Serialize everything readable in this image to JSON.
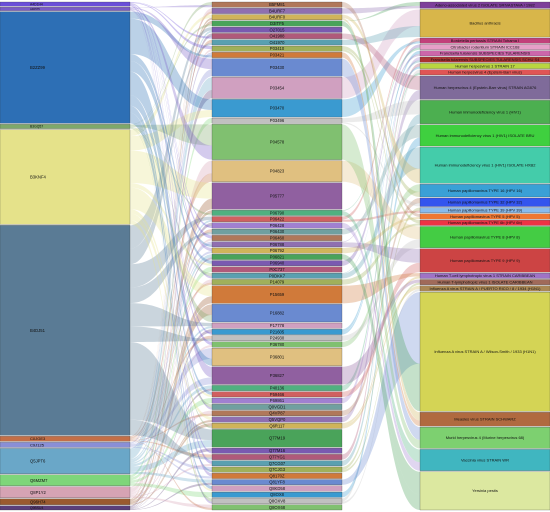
{
  "diagram": {
    "type": "alluvial",
    "colors": {
      "left": [
        "#6a4fd8",
        "#7a5cc8",
        "#2d6fb5",
        "#7fa86a",
        "#e5e28a",
        "#5a7b95",
        "#c46f47",
        "#8a8fd6",
        "#6aa7c8",
        "#7ed67a",
        "#d6a3b4",
        "#9a5a2f",
        "#5a3f7a",
        "#8a3b4a"
      ],
      "mid_palette": [
        "#b0785a",
        "#8f6fb0",
        "#d0b45a",
        "#4aa35a",
        "#7a5ab0",
        "#b05a7a",
        "#5aa0b0",
        "#a0b05a",
        "#d07a3a",
        "#6a8ad0",
        "#d0a0c0",
        "#3a9ad0",
        "#c0c0c0",
        "#80c070",
        "#e0c080",
        "#9060a0",
        "#50b080",
        "#d06060",
        "#a080d0",
        "#70a0a0"
      ],
      "right": [
        "#7d3f9a",
        "#d8b64a",
        "#c2407a",
        "#e6a0c8",
        "#cc66aa",
        "#aa3333",
        "#b9d640",
        "#e05555",
        "#7f6b9a",
        "#4caf50",
        "#3fd03f",
        "#44ccaa",
        "#3aa0d6",
        "#3355ee",
        "#88bbee",
        "#ee7733",
        "#ee3344",
        "#44cc44",
        "#cc4444",
        "#9f73c6",
        "#a06a5a",
        "#aa8855",
        "#d4d455",
        "#b06a40",
        "#7dd070",
        "#40b6c0",
        "#dce8a0",
        "#f0b070",
        "#6ad090",
        "#ee9999"
      ]
    },
    "left_nodes": [
      {
        "label": "A4D1H4",
        "value": 5
      },
      {
        "label": "A4D575",
        "value": 4
      },
      {
        "label": "B2ZZ99",
        "value": 132
      },
      {
        "label": "B3GQ57",
        "value": 5
      },
      {
        "label": "B3KNF4",
        "value": 112
      },
      {
        "label": "B4DJ51",
        "value": 248
      },
      {
        "label": "C0JGE3",
        "value": 6
      },
      {
        "label": "C9J125",
        "value": 6
      },
      {
        "label": "Q5JPT6",
        "value": 30
      },
      {
        "label": "Q6MZM7",
        "value": 13
      },
      {
        "label": "Q8P1Y2",
        "value": 13
      },
      {
        "label": "Q96H74",
        "value": 7
      },
      {
        "label": "Q9BSU4",
        "value": 5
      }
    ],
    "mid_nodes": [
      {
        "label": "B5FM81",
        "value": 3
      },
      {
        "label": "B4URF7",
        "value": 3
      },
      {
        "label": "B4URF0",
        "value": 3
      },
      {
        "label": "D3ITF5",
        "value": 3
      },
      {
        "label": "O27015",
        "value": 3
      },
      {
        "label": "O41988",
        "value": 3
      },
      {
        "label": "O41970",
        "value": 3
      },
      {
        "label": "P03410",
        "value": 3
      },
      {
        "label": "P03421",
        "value": 3
      },
      {
        "label": "P03430",
        "value": 10
      },
      {
        "label": "P03454",
        "value": 12
      },
      {
        "label": "P03470",
        "value": 10
      },
      {
        "label": "P03496",
        "value": 3
      },
      {
        "label": "P04578",
        "value": 20
      },
      {
        "label": "P04823",
        "value": 12
      },
      {
        "label": "P05777",
        "value": 15
      },
      {
        "label": "P06790",
        "value": 3
      },
      {
        "label": "P06422",
        "value": 3
      },
      {
        "label": "P06428",
        "value": 3
      },
      {
        "label": "P06430",
        "value": 3
      },
      {
        "label": "P06460",
        "value": 3
      },
      {
        "label": "P06788",
        "value": 3
      },
      {
        "label": "P06792",
        "value": 3
      },
      {
        "label": "P06821",
        "value": 3
      },
      {
        "label": "P06940",
        "value": 3
      },
      {
        "label": "P0C737",
        "value": 3
      },
      {
        "label": "P0DKK7",
        "value": 3
      },
      {
        "label": "P14079",
        "value": 3
      },
      {
        "label": "P15659",
        "value": 10
      },
      {
        "label": "P16882",
        "value": 10
      },
      {
        "label": "P17778",
        "value": 3
      },
      {
        "label": "P21605",
        "value": 3
      },
      {
        "label": "P24930",
        "value": 3
      },
      {
        "label": "P36780",
        "value": 3
      },
      {
        "label": "P36801",
        "value": 10
      },
      {
        "label": "P36827",
        "value": 10
      },
      {
        "label": "P40136",
        "value": 3
      },
      {
        "label": "P59466",
        "value": 3
      },
      {
        "label": "P69861",
        "value": 3
      },
      {
        "label": "Q0VGD1",
        "value": 3
      },
      {
        "label": "Q4VP87",
        "value": 3
      },
      {
        "label": "Q5VQP0",
        "value": 3
      },
      {
        "label": "Q6R117",
        "value": 3
      },
      {
        "label": "Q77M19",
        "value": 10
      },
      {
        "label": "Q77M16",
        "value": 3
      },
      {
        "label": "Q77YG1",
        "value": 3
      },
      {
        "label": "Q7CG07",
        "value": 3
      },
      {
        "label": "Q7CJG3",
        "value": 3
      },
      {
        "label": "Q8170Z",
        "value": 3
      },
      {
        "label": "Q81YF8",
        "value": 3
      },
      {
        "label": "Q8KD58",
        "value": 3
      },
      {
        "label": "Q8OX8",
        "value": 3
      },
      {
        "label": "Q8OXV8",
        "value": 3
      },
      {
        "label": "Q8OX68",
        "value": 3
      }
    ],
    "right_nodes": [
      {
        "label": "Adeno-associated virus 2 ISOLATE SRIVASTAVA / 1982",
        "value": 6
      },
      {
        "label": "Bacillus anthracis",
        "value": 26
      },
      {
        "label": "Bordetella pertussis STRAIN Tohama I",
        "value": 5
      },
      {
        "label": "Citrobacter rodentium STRAIN ICC168",
        "value": 5
      },
      {
        "label": "Francisella tularensis SUBSPECIES TULARENSIS",
        "value": 5
      },
      {
        "label": "Francisella tularensis SUBSPECIES TULARENSIS SCHU S4",
        "value": 5
      },
      {
        "label": "Human herpesvirus 1 STRAIN 17",
        "value": 5
      },
      {
        "label": "Human herpesvirus 4 (Epstein-Barr virus)",
        "value": 5
      },
      {
        "label": "Human herpesvirus 4 (Epstein-Barr virus) STRAIN AG876",
        "value": 22
      },
      {
        "label": "Human immunodeficiency virus 1 (HIV1)",
        "value": 22
      },
      {
        "label": "Human immunodeficiency virus 1 (HIV1) ISOLATE BRU",
        "value": 20
      },
      {
        "label": "Human immunodeficiency virus 1 (HIV1) ISOLATE HXB2",
        "value": 34
      },
      {
        "label": "Human papillomavirus TYPE 16 (HPV 16)",
        "value": 12
      },
      {
        "label": "Human papillomavirus TYPE 32 (HPV 32)",
        "value": 8
      },
      {
        "label": "Human papillomavirus TYPE 39 (HPV 39)",
        "value": 5
      },
      {
        "label": "Human papillomavirus TYPE 5 (HPV 5)",
        "value": 5
      },
      {
        "label": "Human papillomavirus TYPE 6b (HPV 6b)",
        "value": 5
      },
      {
        "label": "Human papillomavirus TYPE 8 (HPV 8)",
        "value": 20
      },
      {
        "label": "Human papillomavirus TYPE 9 (HPV 9)",
        "value": 22
      },
      {
        "label": "Human T-cell lymphotropic virus 1 STRAIN CARIBBEAN",
        "value": 5
      },
      {
        "label": "Human T-lymphotropic virus 1 ISOLATE CARIBBEAN",
        "value": 5
      },
      {
        "label": "Influenza A virus STRAIN A / PUERTO RICO / 8 / 1934 (H1N1)",
        "value": 5
      },
      {
        "label": "Influenza A virus STRAIN A / Wilson-Smith / 1933 (H1N1)",
        "value": 112
      },
      {
        "label": "Measles virus STRAIN SCHWARZ",
        "value": 13
      },
      {
        "label": "Murid herpesvirus 4 (Murine herpesvirus 68)",
        "value": 20
      },
      {
        "label": "Vaccinia virus STRAIN WR",
        "value": 20
      },
      {
        "label": "Yersinia pestis",
        "value": 36
      }
    ]
  }
}
